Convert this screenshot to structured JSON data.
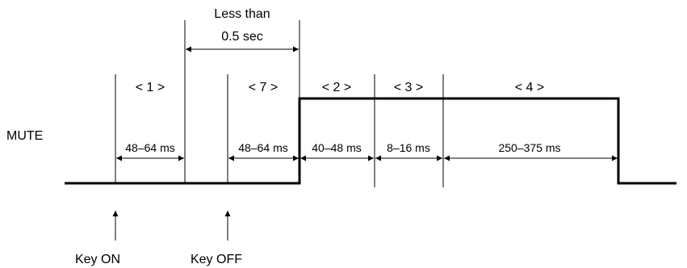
{
  "signal_label": "MUTE",
  "interval_note": {
    "line1": "Less than",
    "line2": "0.5 sec"
  },
  "periods": [
    {
      "label": "< 1 >",
      "duration": "48–64 ms"
    },
    {
      "label": "< 7 >",
      "duration": "48–64 ms"
    },
    {
      "label": "< 2 >",
      "duration": "40–48 ms"
    },
    {
      "label": "< 3 >",
      "duration": "8–16 ms"
    },
    {
      "label": "< 4 >",
      "duration": "250–375 ms"
    }
  ],
  "events": [
    {
      "label": "Key ON"
    },
    {
      "label": "Key OFF"
    }
  ],
  "colors": {
    "line": "#000000",
    "background": "#ffffff"
  }
}
